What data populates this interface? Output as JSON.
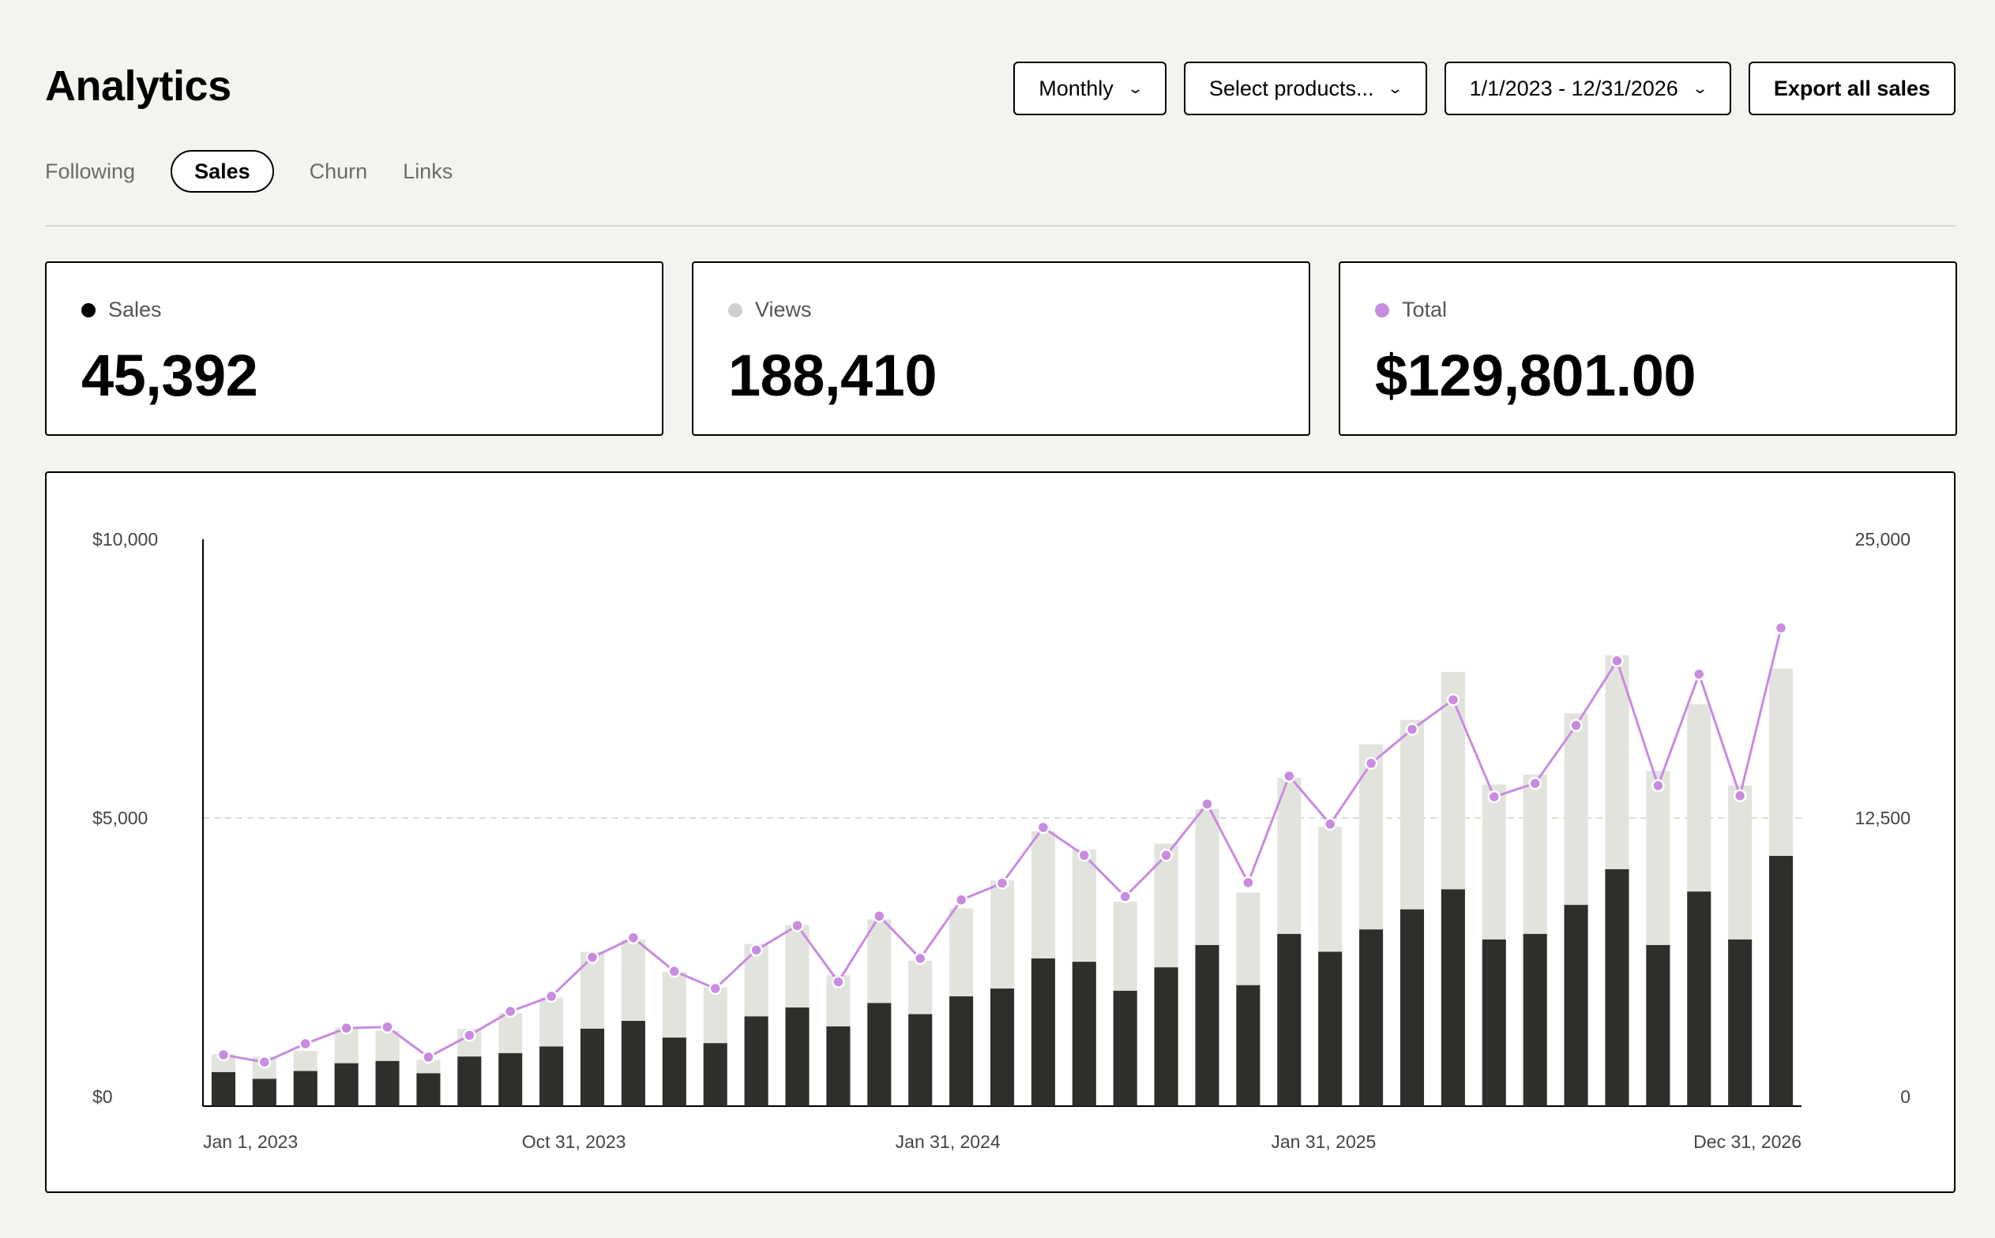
{
  "header": {
    "title": "Analytics",
    "interval_select": "Monthly",
    "products_select": "Select products...",
    "date_range_select": "1/1/2023 - 12/31/2026",
    "export_button": "Export all sales"
  },
  "tabs": [
    {
      "label": "Following",
      "active": false
    },
    {
      "label": "Sales",
      "active": true
    },
    {
      "label": "Churn",
      "active": false
    },
    {
      "label": "Links",
      "active": false
    }
  ],
  "stats": {
    "sales": {
      "label": "Sales",
      "value": "45,392",
      "dot_color": "#000000"
    },
    "views": {
      "label": "Views",
      "value": "188,410",
      "dot_color": "#cfcfcf"
    },
    "total": {
      "label": "Total",
      "value": "$129,801.00",
      "dot_color": "#c98be0"
    }
  },
  "colors": {
    "sales_bar": "#2e2e2a",
    "views_bar": "#e3e3de",
    "total_line": "#c98be0"
  },
  "chart_data": {
    "type": "bar",
    "left_axis_ticks": [
      "$10,000",
      "$5,000",
      "$0"
    ],
    "right_axis_ticks": [
      "25,000",
      "12,500",
      "0"
    ],
    "x_tick_labels": [
      "Jan 1, 2023",
      "Oct 31, 2023",
      "Jan 31, 2024",
      "Jan 31, 2025",
      "Dec 31, 2026"
    ],
    "left_ylim": [
      0,
      10000
    ],
    "right_ylim": [
      0,
      25000
    ],
    "grid": "dashed line at midpoint",
    "series": [
      {
        "name": "Sales",
        "kind": "bar",
        "axis": "right",
        "values": [
          1100,
          800,
          1150,
          1500,
          1600,
          1050,
          1800,
          1950,
          2250,
          3050,
          3400,
          2650,
          2400,
          3600,
          4000,
          3150,
          4200,
          3700,
          4500,
          4850,
          6200,
          6050,
          4750,
          5800,
          6800,
          5000,
          7300,
          6500,
          7500,
          8400,
          9300,
          7050,
          7300,
          8600,
          10200,
          6800,
          9200,
          7050,
          10800
        ],
        "stack_with": "Views"
      },
      {
        "name": "Views",
        "kind": "bar",
        "axis": "right",
        "stacked": true,
        "values": [
          800,
          1000,
          900,
          1600,
          1350,
          600,
          1250,
          1800,
          2200,
          3450,
          3650,
          2950,
          2500,
          3250,
          3700,
          2300,
          3750,
          2400,
          3950,
          4850,
          5700,
          5050,
          4000,
          5550,
          6100,
          4150,
          7000,
          5600,
          8300,
          8500,
          9750,
          6950,
          7150,
          8600,
          9600,
          7800,
          8400,
          6900,
          8400
        ]
      },
      {
        "name": "Total",
        "kind": "line",
        "axis": "left",
        "values": [
          750,
          620,
          950,
          1230,
          1250,
          710,
          1100,
          1530,
          1800,
          2500,
          2850,
          2250,
          1940,
          2630,
          3070,
          2060,
          3240,
          2480,
          3530,
          3830,
          4830,
          4330,
          3590,
          4330,
          5250,
          3840,
          5750,
          4890,
          5980,
          6590,
          7120,
          5380,
          5620,
          6660,
          7820,
          5580,
          7580,
          5400,
          8410
        ]
      }
    ]
  }
}
